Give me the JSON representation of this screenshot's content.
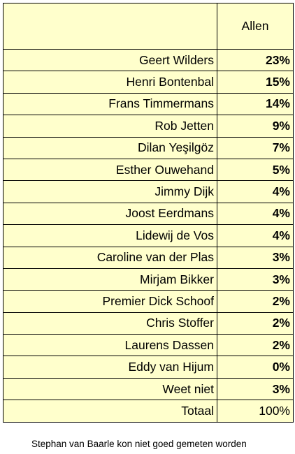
{
  "table": {
    "column_header": "Allen",
    "rows": [
      {
        "name": "Geert Wilders",
        "value": "23%"
      },
      {
        "name": "Henri Bontenbal",
        "value": "15%"
      },
      {
        "name": "Frans Timmermans",
        "value": "14%"
      },
      {
        "name": "Rob Jetten",
        "value": "9%"
      },
      {
        "name": "Dilan Yeşilgöz",
        "value": "7%"
      },
      {
        "name": "Esther Ouwehand",
        "value": "5%"
      },
      {
        "name": "Jimmy Dijk",
        "value": "4%"
      },
      {
        "name": "Joost Eerdmans",
        "value": "4%"
      },
      {
        "name": "Lidewij de Vos",
        "value": "4%"
      },
      {
        "name": "Caroline van der Plas",
        "value": "3%"
      },
      {
        "name": "Mirjam Bikker",
        "value": "3%"
      },
      {
        "name": "Premier Dick Schoof",
        "value": "2%"
      },
      {
        "name": "Chris Stoffer",
        "value": "2%"
      },
      {
        "name": "Laurens Dassen",
        "value": "2%"
      },
      {
        "name": "Eddy van Hijum",
        "value": "0%"
      },
      {
        "name": "Weet niet",
        "value": "3%"
      }
    ],
    "total_label": "Totaal",
    "total_value": "100%"
  },
  "footnote": "Stephan van Baarle kon niet goed gemeten worden",
  "colors": {
    "cell_background": "#ffffcc",
    "border": "#000000"
  }
}
